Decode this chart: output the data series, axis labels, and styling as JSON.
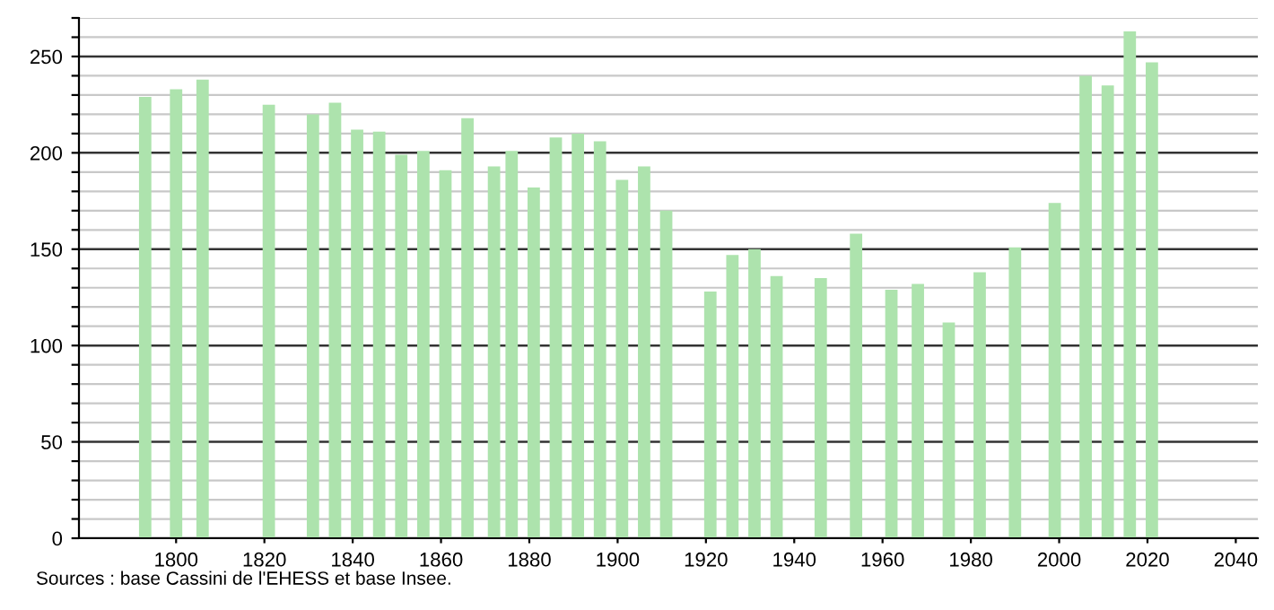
{
  "chart_data": {
    "type": "bar",
    "color": "#ade3ad",
    "x": [
      1793,
      1800,
      1806,
      1821,
      1831,
      1836,
      1841,
      1846,
      1851,
      1856,
      1861,
      1866,
      1872,
      1876,
      1881,
      1886,
      1891,
      1896,
      1901,
      1906,
      1911,
      1921,
      1926,
      1931,
      1936,
      1946,
      1954,
      1962,
      1968,
      1975,
      1982,
      1990,
      1999,
      2006,
      2011,
      2016,
      2021
    ],
    "values": [
      229,
      233,
      238,
      225,
      220,
      226,
      212,
      211,
      199,
      201,
      191,
      218,
      193,
      201,
      182,
      208,
      210,
      206,
      186,
      193,
      170,
      128,
      147,
      150,
      136,
      135,
      158,
      129,
      132,
      112,
      138,
      151,
      174,
      240,
      235,
      263,
      247
    ],
    "xlim": [
      1778,
      2045
    ],
    "xticks": [
      1800,
      1820,
      1840,
      1860,
      1880,
      1900,
      1920,
      1940,
      1960,
      1980,
      2000,
      2020,
      2040
    ],
    "ylim": [
      0,
      270
    ],
    "yticks": [
      0,
      {
        "value": 10,
        "label": null
      },
      {
        "value": 20,
        "label": null
      },
      {
        "value": 30,
        "label": null
      },
      {
        "value": 40,
        "label": null
      },
      50,
      {
        "value": 60,
        "label": null
      },
      {
        "value": 70,
        "label": null
      },
      {
        "value": 80,
        "label": null
      },
      {
        "value": 90,
        "label": null
      },
      100,
      {
        "value": 110,
        "label": null
      },
      {
        "value": 120,
        "label": null
      },
      {
        "value": 130,
        "label": null
      },
      {
        "value": 140,
        "label": null
      },
      150,
      {
        "value": 160,
        "label": null
      },
      {
        "value": 170,
        "label": null
      },
      {
        "value": 180,
        "label": null
      },
      {
        "value": 190,
        "label": null
      },
      200,
      {
        "value": 210,
        "label": null
      },
      {
        "value": 220,
        "label": null
      },
      {
        "value": 230,
        "label": null
      },
      {
        "value": 240,
        "label": null
      },
      250,
      {
        "value": 260,
        "label": null
      },
      {
        "value": 270,
        "label": null
      }
    ],
    "grid": "y",
    "annotations": [
      "Sources : base Cassini de l'EHESS et base Insee."
    ]
  }
}
